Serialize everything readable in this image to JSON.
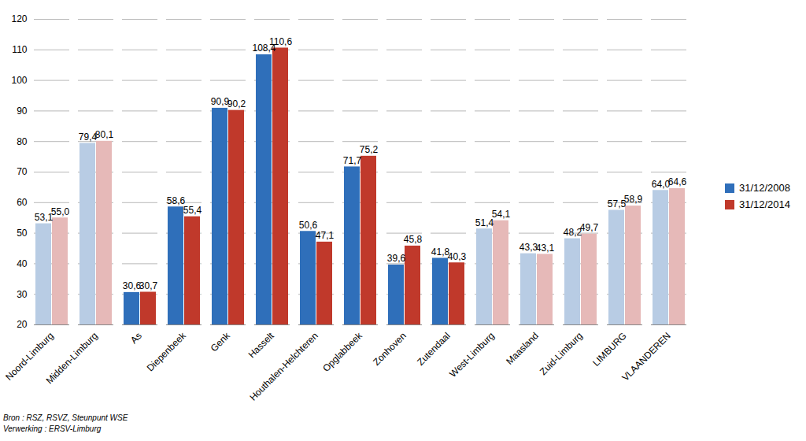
{
  "chart_data": {
    "type": "bar",
    "categories": [
      "Noord-Limburg",
      "Midden-Limburg",
      "As",
      "Diepenbeek",
      "Genk",
      "Hasselt",
      "Houthalen-Helchteren",
      "Opglabbeek",
      "Zonhoven",
      "Zutendaal",
      "West-Limburg",
      "Maasland",
      "Zuid-Limburg",
      "LIMBURG",
      "VLAANDEREN"
    ],
    "series": [
      {
        "name": "31/12/2008",
        "color": "#2f6fba",
        "colors": [
          "#b8cce4",
          "#b8cce4",
          "#2f6fba",
          "#2f6fba",
          "#2f6fba",
          "#2f6fba",
          "#2f6fba",
          "#2f6fba",
          "#2f6fba",
          "#2f6fba",
          "#b8cce4",
          "#b8cce4",
          "#b8cce4",
          "#b8cce4",
          "#b8cce4"
        ],
        "values": [
          53.1,
          79.4,
          30.6,
          58.6,
          90.9,
          108.4,
          50.6,
          71.7,
          39.6,
          41.8,
          51.4,
          43.3,
          48.2,
          57.5,
          64.0
        ],
        "value_labels": [
          "53,1",
          "79,4",
          "30,6",
          "58,6",
          "90,9",
          "108,4",
          "50,6",
          "71,7",
          "39,6",
          "41,8",
          "51,4",
          "43,3",
          "48,2",
          "57,5",
          "64,0"
        ]
      },
      {
        "name": "31/12/2014",
        "color": "#c0392b",
        "colors": [
          "#e6b9b8",
          "#e6b9b8",
          "#c0392b",
          "#c0392b",
          "#c0392b",
          "#c0392b",
          "#c0392b",
          "#c0392b",
          "#c0392b",
          "#c0392b",
          "#e6b9b8",
          "#e6b9b8",
          "#e6b9b8",
          "#e6b9b8",
          "#e6b9b8"
        ],
        "values": [
          55.0,
          80.1,
          30.7,
          55.4,
          90.2,
          110.6,
          47.1,
          75.2,
          45.8,
          40.3,
          54.1,
          43.1,
          49.7,
          58.9,
          64.6
        ],
        "value_labels": [
          "55,0",
          "80,1",
          "30,7",
          "55,4",
          "90,2",
          "110,6",
          "47,1",
          "75,2",
          "45,8",
          "40,3",
          "54,1",
          "43,1",
          "49,7",
          "58,9",
          "64,6"
        ]
      }
    ],
    "ylim": [
      20,
      120
    ],
    "yticks": [
      20,
      30,
      40,
      50,
      60,
      70,
      80,
      90,
      100,
      110,
      120
    ],
    "grid": true,
    "legend": "right",
    "data_labels": true,
    "annotations": [
      "Bron : RSZ, RSVZ, Steunpunt WSE",
      "Verwerking : ERSV-Limburg"
    ]
  }
}
